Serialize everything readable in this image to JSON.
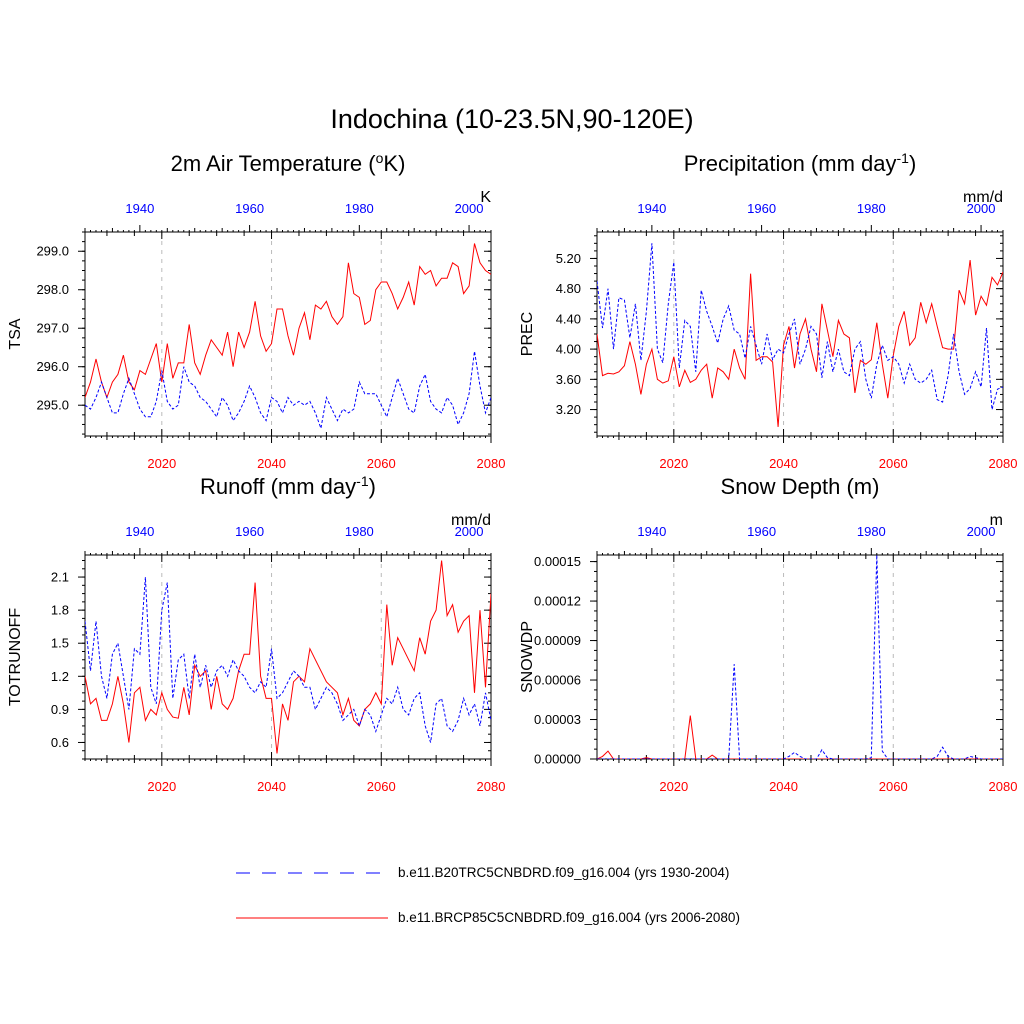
{
  "figure": {
    "main_title": "Indochina (10-23.5N,90-120E)",
    "legend": [
      {
        "label": "b.e11.B20TRC5CNBDRD.f09_g16.004 (yrs 1930-2004)",
        "color": "#0000ff",
        "style": "dashed"
      },
      {
        "label": "b.e11.BRCP85C5CNBDRD.f09_g16.004 (yrs 2006-2080)",
        "color": "#ff0000",
        "style": "solid"
      }
    ],
    "colors": {
      "historical": "#0000ff",
      "future": "#ff0000",
      "grid": "#bbbbbb",
      "axis": "#000000"
    }
  },
  "chart_data": [
    {
      "type": "line",
      "title": "2m Air Temperature (",
      "title_super": "o",
      "title_end": "K)",
      "ylabel": "TSA",
      "units": "K",
      "ylim": [
        294.2,
        299.5
      ],
      "yticks": [
        295.0,
        296.0,
        297.0,
        298.0,
        299.0
      ],
      "ytick_labels": [
        "295.0",
        "296.0",
        "297.0",
        "298.0",
        "299.0"
      ],
      "bottom_ticks": [
        "2020",
        "2040",
        "2060",
        "2080"
      ],
      "top_ticks": [
        "1940",
        "1960",
        "1980",
        "2000"
      ],
      "series": [
        {
          "name": "b.e11.B20TRC5CNBDRD.f09_g16.004 (yrs 1930-2004)",
          "years": [
            1930,
            2004
          ],
          "values": [
            295.0,
            294.9,
            295.2,
            295.6,
            295.2,
            294.8,
            294.8,
            295.3,
            295.7,
            295.3,
            294.9,
            294.7,
            294.7,
            295.1,
            295.9,
            295.1,
            294.9,
            295.0,
            296.0,
            295.6,
            295.5,
            295.2,
            295.1,
            294.9,
            294.7,
            295.2,
            295.0,
            294.6,
            294.8,
            295.1,
            295.5,
            295.2,
            294.8,
            294.6,
            295.2,
            295.1,
            294.8,
            295.2,
            295.0,
            295.1,
            295.0,
            295.1,
            294.8,
            294.4,
            295.2,
            294.9,
            294.6,
            294.9,
            294.8,
            294.9,
            295.6,
            295.3,
            295.3,
            295.3,
            295.0,
            294.7,
            295.2,
            295.7,
            295.3,
            294.9,
            294.8,
            295.5,
            295.8,
            295.1,
            294.9,
            294.8,
            295.2,
            295.0,
            294.5,
            294.8,
            295.3,
            296.4,
            295.5,
            294.8,
            295.2
          ]
        },
        {
          "name": "b.e11.BRCP85C5CNBDRD.f09_g16.004 (yrs 2006-2080)",
          "years": [
            2006,
            2080
          ],
          "values": [
            295.2,
            295.6,
            296.2,
            295.6,
            295.2,
            295.6,
            295.8,
            296.3,
            295.6,
            295.4,
            295.9,
            295.8,
            296.2,
            296.6,
            295.6,
            296.6,
            295.7,
            296.1,
            296.1,
            297.1,
            296.1,
            295.8,
            296.3,
            296.7,
            296.5,
            296.3,
            296.9,
            296.0,
            296.9,
            296.5,
            296.9,
            297.7,
            296.8,
            296.4,
            296.6,
            297.5,
            297.5,
            296.8,
            296.3,
            297.0,
            297.4,
            296.7,
            297.6,
            297.5,
            297.7,
            297.3,
            297.1,
            297.3,
            298.7,
            297.9,
            297.8,
            297.1,
            297.2,
            298.0,
            298.2,
            298.2,
            297.9,
            297.5,
            297.8,
            298.2,
            297.6,
            298.6,
            298.4,
            298.5,
            298.1,
            298.3,
            298.3,
            298.7,
            298.6,
            297.9,
            298.1,
            299.2,
            298.7,
            298.5,
            298.4
          ]
        }
      ]
    },
    {
      "type": "line",
      "title": "Precipitation (mm day",
      "title_super": "-1",
      "title_end": ")",
      "ylabel": "PREC",
      "units": "mm/d",
      "ylim": [
        2.85,
        5.55
      ],
      "yticks": [
        3.2,
        3.6,
        4.0,
        4.4,
        4.8,
        5.2
      ],
      "ytick_labels": [
        "3.20",
        "3.60",
        "4.00",
        "4.40",
        "4.80",
        "5.20"
      ],
      "bottom_ticks": [
        "2020",
        "2040",
        "2060",
        "2080"
      ],
      "top_ticks": [
        "1940",
        "1960",
        "1980",
        "2000"
      ],
      "series": [
        {
          "name": "b.e11.B20TRC5CNBDRD.f09_g16.004 (yrs 1930-2004)",
          "years": [
            1930,
            2004
          ],
          "values": [
            4.9,
            4.28,
            4.8,
            4.0,
            4.68,
            4.65,
            4.15,
            4.6,
            3.85,
            4.5,
            5.4,
            4.0,
            3.82,
            4.6,
            5.15,
            3.75,
            4.38,
            4.3,
            3.7,
            4.78,
            4.5,
            4.3,
            4.08,
            4.4,
            4.57,
            4.25,
            4.2,
            3.88,
            4.3,
            4.05,
            3.8,
            4.2,
            3.86,
            4.0,
            3.95,
            4.2,
            4.4,
            3.8,
            4.0,
            4.3,
            4.2,
            3.62,
            4.1,
            3.7,
            4.0,
            3.7,
            3.65,
            4.0,
            4.1,
            3.6,
            3.35,
            3.8,
            4.05,
            3.85,
            3.9,
            3.8,
            3.55,
            3.8,
            3.6,
            3.55,
            3.6,
            3.72,
            3.33,
            3.3,
            3.65,
            4.2,
            3.7,
            3.4,
            3.48,
            3.7,
            3.5,
            4.28,
            3.2,
            3.47,
            3.5
          ]
        },
        {
          "name": "b.e11.BRCP85C5CNBDRD.f09_g16.004 (yrs 2006-2080)",
          "years": [
            2006,
            2080
          ],
          "values": [
            4.2,
            3.65,
            3.68,
            3.67,
            3.7,
            3.78,
            4.1,
            3.8,
            3.4,
            3.8,
            4.0,
            3.6,
            3.55,
            3.58,
            3.9,
            3.5,
            3.72,
            3.56,
            3.6,
            3.72,
            3.8,
            3.35,
            3.75,
            3.7,
            3.6,
            4.0,
            3.75,
            3.6,
            5.0,
            3.85,
            3.9,
            3.9,
            3.83,
            2.97,
            4.05,
            4.3,
            3.75,
            4.2,
            4.4,
            4.0,
            3.7,
            4.6,
            4.25,
            3.9,
            4.38,
            4.2,
            4.15,
            3.42,
            3.85,
            3.8,
            3.86,
            4.35,
            3.8,
            3.35,
            3.92,
            4.3,
            4.5,
            4.05,
            4.15,
            4.62,
            4.35,
            4.6,
            4.3,
            4.02,
            4.0,
            4.0,
            4.78,
            4.6,
            5.18,
            4.45,
            4.7,
            4.58,
            4.95,
            4.85,
            5.02
          ]
        }
      ]
    },
    {
      "type": "line",
      "title": "Runoff (mm day",
      "title_super": "-1",
      "title_end": ")",
      "ylabel": "TOTRUNOFF",
      "units": "mm/d",
      "ylim": [
        0.45,
        2.3
      ],
      "yticks": [
        0.6,
        0.9,
        1.2,
        1.5,
        1.8,
        2.1
      ],
      "ytick_labels": [
        "0.6",
        "0.9",
        "1.2",
        "1.5",
        "1.8",
        "2.1"
      ],
      "bottom_ticks": [
        "2020",
        "2040",
        "2060",
        "2080"
      ],
      "top_ticks": [
        "1940",
        "1960",
        "1980",
        "2000"
      ],
      "series": [
        {
          "name": "b.e11.B20TRC5CNBDRD.f09_g16.004 (yrs 1930-2004)",
          "years": [
            1930,
            2004
          ],
          "values": [
            1.7,
            1.25,
            1.7,
            1.2,
            1.0,
            1.4,
            1.5,
            1.2,
            0.9,
            1.45,
            1.4,
            2.1,
            1.1,
            0.95,
            1.8,
            2.05,
            1.0,
            1.35,
            1.4,
            1.0,
            1.4,
            1.1,
            1.3,
            1.1,
            1.25,
            1.3,
            1.2,
            1.35,
            1.25,
            1.2,
            1.1,
            1.05,
            1.15,
            1.1,
            1.45,
            1.0,
            1.05,
            1.15,
            1.25,
            1.2,
            1.1,
            1.1,
            0.9,
            1.0,
            1.1,
            1.05,
            0.95,
            0.8,
            0.85,
            0.9,
            0.75,
            0.9,
            0.85,
            0.7,
            0.85,
            1.0,
            0.95,
            1.1,
            0.9,
            0.85,
            1.0,
            1.05,
            0.75,
            0.6,
            0.95,
            1.0,
            0.75,
            0.7,
            0.8,
            1.0,
            0.85,
            0.95,
            0.75,
            1.05,
            0.8
          ]
        },
        {
          "name": "b.e11.BRCP85C5CNBDRD.f09_g16.004 (yrs 2006-2080)",
          "years": [
            2006,
            2080
          ],
          "values": [
            1.2,
            0.95,
            1.0,
            0.8,
            0.8,
            0.95,
            1.2,
            0.95,
            0.6,
            1.05,
            1.1,
            0.8,
            0.9,
            0.85,
            1.05,
            0.9,
            0.83,
            0.82,
            1.1,
            0.85,
            1.3,
            1.2,
            1.25,
            0.9,
            1.2,
            0.95,
            0.9,
            1.0,
            1.25,
            1.4,
            1.4,
            2.05,
            1.2,
            1.0,
            1.0,
            0.5,
            0.95,
            0.8,
            1.15,
            1.2,
            1.15,
            1.45,
            1.35,
            1.25,
            1.15,
            1.1,
            1.05,
            0.85,
            1.0,
            0.8,
            0.75,
            0.9,
            0.95,
            1.05,
            0.95,
            1.85,
            1.3,
            1.55,
            1.45,
            1.35,
            1.25,
            1.55,
            1.4,
            1.7,
            1.8,
            2.25,
            1.75,
            1.85,
            1.6,
            1.7,
            1.75,
            1.05,
            1.8,
            1.1,
            1.95
          ]
        }
      ]
    },
    {
      "type": "line",
      "title": "Snow Depth (m)",
      "title_super": "",
      "title_end": "",
      "ylabel": "SNOWDP",
      "units": "m",
      "ylim": [
        0,
        0.000155
      ],
      "yticks": [
        0,
        3e-05,
        6e-05,
        9e-05,
        0.00012,
        0.00015
      ],
      "ytick_labels": [
        "0.00000",
        "0.00003",
        "0.00006",
        "0.00009",
        "0.00012",
        "0.00015"
      ],
      "bottom_ticks": [
        "2020",
        "2040",
        "2060",
        "2080"
      ],
      "top_ticks": [
        "1940",
        "1960",
        "1980",
        "2000"
      ],
      "series": [
        {
          "name": "b.e11.B20TRC5CNBDRD.f09_g16.004 (yrs 1930-2004)",
          "years": [
            1930,
            2004
          ],
          "values": [
            0,
            0,
            0,
            0,
            0,
            0,
            0,
            0,
            0,
            0,
            0,
            0,
            0,
            0,
            0,
            0,
            0,
            0,
            0,
            0,
            0,
            0,
            0,
            0,
            0,
            7.2e-05,
            0,
            0,
            0,
            0,
            0,
            0,
            0,
            0,
            0,
            2e-06,
            5e-06,
            2e-06,
            0,
            0,
            0,
            7e-06,
            1e-06,
            0,
            0,
            0,
            0,
            0,
            0,
            0,
            1e-06,
            0.000155,
            6e-06,
            0,
            0,
            0,
            0,
            0,
            0,
            0,
            0,
            0,
            2e-06,
            9e-06,
            2e-06,
            0,
            0,
            0,
            2e-06,
            1e-06,
            0,
            0,
            0,
            0,
            0
          ]
        },
        {
          "name": "b.e11.BRCP85C5CNBDRD.f09_g16.004 (yrs 2006-2080)",
          "years": [
            2006,
            2080
          ],
          "values": [
            0,
            2e-06,
            6e-06,
            0,
            0,
            0,
            0,
            0,
            0,
            1e-06,
            0,
            0,
            0,
            0,
            0,
            0,
            0,
            3.3e-05,
            0,
            0,
            0,
            3e-06,
            0,
            0,
            0,
            0,
            0,
            0,
            0,
            0,
            0,
            0,
            0,
            0,
            0,
            0,
            0,
            0,
            0,
            0,
            0,
            0,
            0,
            0,
            0,
            0,
            0,
            0,
            0,
            0,
            0,
            0,
            0,
            0,
            0,
            0,
            0,
            0,
            0,
            0,
            0,
            0,
            0,
            0,
            0,
            0,
            0,
            0,
            0,
            0,
            0,
            0,
            0,
            0,
            0
          ]
        }
      ]
    }
  ]
}
